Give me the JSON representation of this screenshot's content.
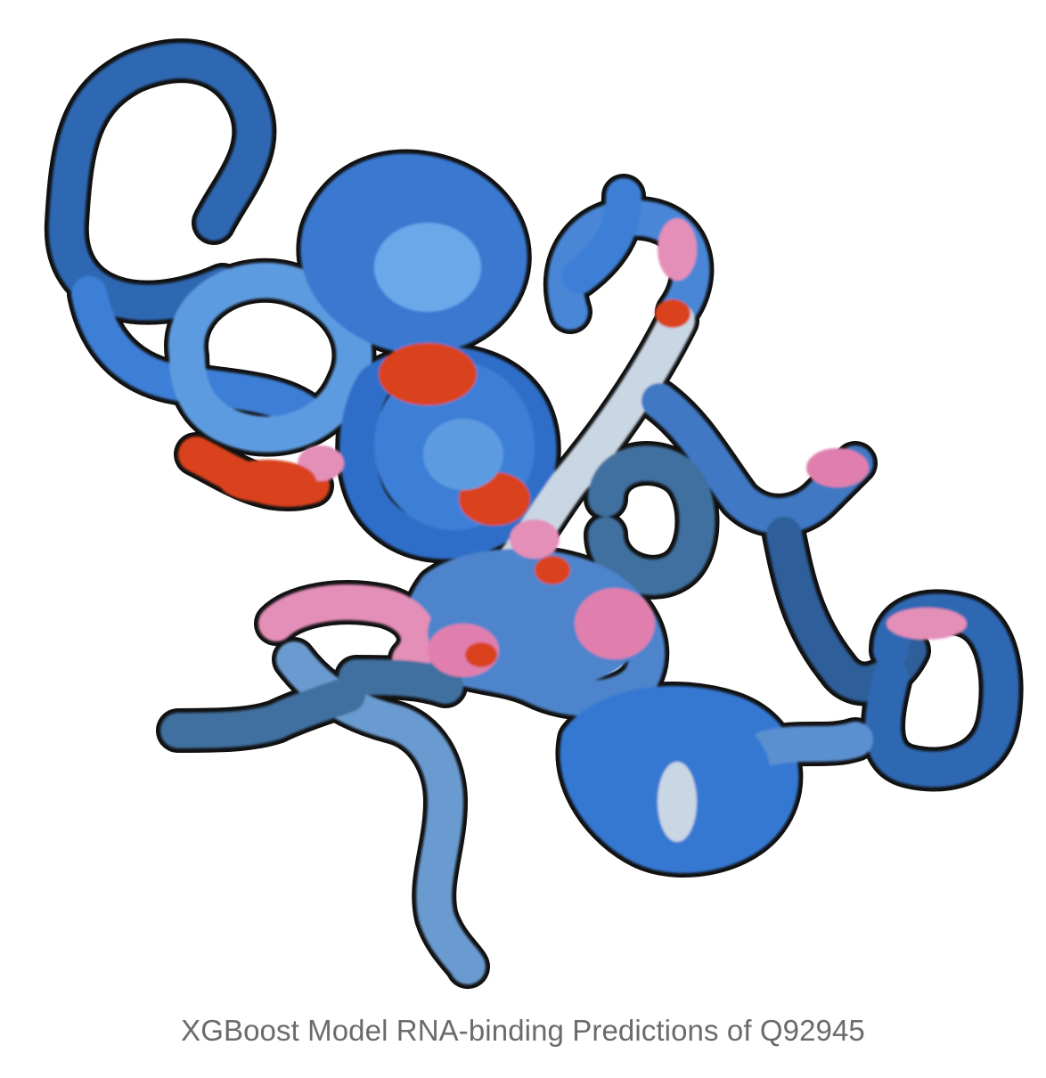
{
  "figure": {
    "caption": "XGBoost Model RNA-binding Predictions of Q92945"
  },
  "colors": {
    "background": "#ffffff",
    "outline": "#111111",
    "blue_dark": "#2f67b2",
    "blue_mid": "#3d7fd6",
    "blue_light": "#6aa8ea",
    "steel": "#3f6f9f",
    "pale": "#c9d6e4",
    "pink": "#e07fae",
    "red": "#d9421a"
  }
}
